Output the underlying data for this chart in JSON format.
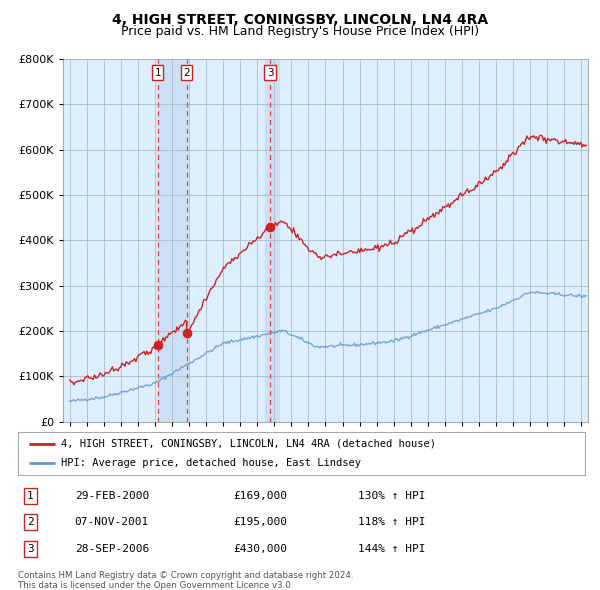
{
  "title": "4, HIGH STREET, CONINGSBY, LINCOLN, LN4 4RA",
  "subtitle": "Price paid vs. HM Land Registry's House Price Index (HPI)",
  "legend_label_red": "4, HIGH STREET, CONINGSBY, LINCOLN, LN4 4RA (detached house)",
  "legend_label_blue": "HPI: Average price, detached house, East Lindsey",
  "footer_line1": "Contains HM Land Registry data © Crown copyright and database right 2024.",
  "footer_line2": "This data is licensed under the Open Government Licence v3.0.",
  "sales": [
    {
      "num": 1,
      "date": "29-FEB-2000",
      "price": 169000,
      "hpi_pct": "130% ↑ HPI",
      "x_year": 2000.16
    },
    {
      "num": 2,
      "date": "07-NOV-2001",
      "price": 195000,
      "hpi_pct": "118% ↑ HPI",
      "x_year": 2001.85
    },
    {
      "num": 3,
      "date": "28-SEP-2006",
      "price": 430000,
      "hpi_pct": "144% ↑ HPI",
      "x_year": 2006.75
    }
  ],
  "vline_color": "#dd4444",
  "vline_style": "--",
  "background_color": "#ffffff",
  "plot_bg_color": "#ddeeff",
  "grid_color": "#aabbcc",
  "ylim": [
    0,
    800000
  ],
  "xlim_left": 1994.6,
  "xlim_right": 2025.4,
  "red_line_color": "#cc2222",
  "blue_line_color": "#6699cc",
  "sale_marker_color": "#cc2222",
  "shade_color": "#cce0f5",
  "title_fontsize": 10,
  "subtitle_fontsize": 9
}
